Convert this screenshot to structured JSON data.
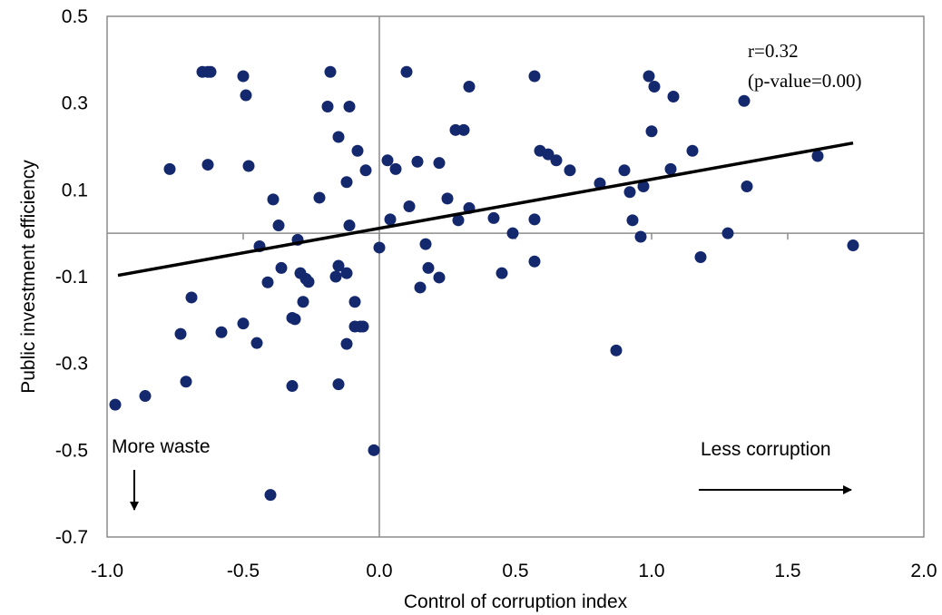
{
  "chart_data": {
    "type": "scatter",
    "xlabel": "Control of corruption index",
    "ylabel": "Public investment efficiency",
    "xlim": [
      -1.0,
      2.0
    ],
    "ylim": [
      -0.7,
      0.5
    ],
    "xticks": [
      "-1.0",
      "-0.5",
      "0.0",
      "0.5",
      "1.0",
      "1.5",
      "2.0"
    ],
    "xtick_values": [
      -1.0,
      -0.5,
      0.0,
      0.5,
      1.0,
      1.5,
      2.0
    ],
    "yticks": [
      "0.5",
      "0.3",
      "0.1",
      "-0.1",
      "-0.3",
      "-0.5",
      "-0.7"
    ],
    "ytick_values": [
      0.5,
      0.3,
      0.1,
      -0.1,
      -0.3,
      -0.5,
      -0.7
    ],
    "grid": false,
    "reference_lines": {
      "x": 0.0,
      "y": 0.0
    },
    "marker_color": "#14286e",
    "trendline": {
      "x": [
        -0.96,
        1.74
      ],
      "y": [
        -0.097,
        0.208
      ],
      "color": "#000000"
    },
    "annotations": {
      "stat_line1": "r=0.32",
      "stat_line2": "(p-value=0.00)",
      "more_waste": "More waste",
      "less_corruption": "Less corruption"
    },
    "points": [
      {
        "x": -0.97,
        "y": -0.395
      },
      {
        "x": -0.86,
        "y": -0.375
      },
      {
        "x": -0.77,
        "y": 0.148
      },
      {
        "x": -0.73,
        "y": -0.232
      },
      {
        "x": -0.71,
        "y": -0.342
      },
      {
        "x": -0.69,
        "y": -0.148
      },
      {
        "x": -0.65,
        "y": 0.372
      },
      {
        "x": -0.63,
        "y": 0.372
      },
      {
        "x": -0.63,
        "y": 0.158
      },
      {
        "x": -0.62,
        "y": 0.372
      },
      {
        "x": -0.58,
        "y": -0.228
      },
      {
        "x": -0.5,
        "y": 0.362
      },
      {
        "x": -0.5,
        "y": -0.208
      },
      {
        "x": -0.49,
        "y": 0.318
      },
      {
        "x": -0.48,
        "y": 0.155
      },
      {
        "x": -0.45,
        "y": -0.253
      },
      {
        "x": -0.44,
        "y": -0.03
      },
      {
        "x": -0.41,
        "y": -0.113
      },
      {
        "x": -0.4,
        "y": -0.603
      },
      {
        "x": -0.39,
        "y": 0.078
      },
      {
        "x": -0.37,
        "y": 0.018
      },
      {
        "x": -0.36,
        "y": -0.08
      },
      {
        "x": -0.32,
        "y": -0.352
      },
      {
        "x": -0.32,
        "y": -0.195
      },
      {
        "x": -0.31,
        "y": -0.198
      },
      {
        "x": -0.3,
        "y": -0.015
      },
      {
        "x": -0.29,
        "y": -0.092
      },
      {
        "x": -0.28,
        "y": -0.158
      },
      {
        "x": -0.27,
        "y": -0.105
      },
      {
        "x": -0.26,
        "y": -0.112
      },
      {
        "x": -0.22,
        "y": 0.082
      },
      {
        "x": -0.19,
        "y": 0.292
      },
      {
        "x": -0.18,
        "y": 0.372
      },
      {
        "x": -0.16,
        "y": -0.1
      },
      {
        "x": -0.15,
        "y": 0.222
      },
      {
        "x": -0.15,
        "y": -0.075
      },
      {
        "x": -0.15,
        "y": -0.348
      },
      {
        "x": -0.12,
        "y": 0.118
      },
      {
        "x": -0.12,
        "y": -0.092
      },
      {
        "x": -0.12,
        "y": -0.255
      },
      {
        "x": -0.11,
        "y": 0.292
      },
      {
        "x": -0.11,
        "y": 0.018
      },
      {
        "x": -0.09,
        "y": -0.158
      },
      {
        "x": -0.09,
        "y": -0.215
      },
      {
        "x": -0.08,
        "y": 0.19
      },
      {
        "x": -0.07,
        "y": -0.215
      },
      {
        "x": -0.06,
        "y": -0.215
      },
      {
        "x": -0.05,
        "y": 0.145
      },
      {
        "x": -0.02,
        "y": -0.5
      },
      {
        "x": 0.0,
        "y": -0.033
      },
      {
        "x": 0.03,
        "y": 0.168
      },
      {
        "x": 0.04,
        "y": 0.032
      },
      {
        "x": 0.06,
        "y": 0.148
      },
      {
        "x": 0.1,
        "y": 0.372
      },
      {
        "x": 0.11,
        "y": 0.062
      },
      {
        "x": 0.14,
        "y": 0.165
      },
      {
        "x": 0.15,
        "y": -0.125
      },
      {
        "x": 0.17,
        "y": -0.025
      },
      {
        "x": 0.18,
        "y": -0.08
      },
      {
        "x": 0.22,
        "y": 0.162
      },
      {
        "x": 0.22,
        "y": -0.102
      },
      {
        "x": 0.25,
        "y": 0.08
      },
      {
        "x": 0.28,
        "y": 0.238
      },
      {
        "x": 0.29,
        "y": 0.03
      },
      {
        "x": 0.31,
        "y": 0.238
      },
      {
        "x": 0.33,
        "y": 0.338
      },
      {
        "x": 0.33,
        "y": 0.058
      },
      {
        "x": 0.42,
        "y": 0.035
      },
      {
        "x": 0.45,
        "y": -0.092
      },
      {
        "x": 0.49,
        "y": 0.0
      },
      {
        "x": 0.57,
        "y": 0.362
      },
      {
        "x": 0.57,
        "y": 0.032
      },
      {
        "x": 0.57,
        "y": -0.065
      },
      {
        "x": 0.59,
        "y": 0.19
      },
      {
        "x": 0.62,
        "y": 0.182
      },
      {
        "x": 0.65,
        "y": 0.168
      },
      {
        "x": 0.7,
        "y": 0.145
      },
      {
        "x": 0.81,
        "y": 0.115
      },
      {
        "x": 0.87,
        "y": -0.27
      },
      {
        "x": 0.9,
        "y": 0.145
      },
      {
        "x": 0.92,
        "y": 0.095
      },
      {
        "x": 0.93,
        "y": 0.03
      },
      {
        "x": 0.96,
        "y": -0.008
      },
      {
        "x": 0.97,
        "y": 0.108
      },
      {
        "x": 0.99,
        "y": 0.362
      },
      {
        "x": 1.0,
        "y": 0.235
      },
      {
        "x": 1.01,
        "y": 0.338
      },
      {
        "x": 1.07,
        "y": 0.148
      },
      {
        "x": 1.08,
        "y": 0.315
      },
      {
        "x": 1.15,
        "y": 0.19
      },
      {
        "x": 1.18,
        "y": -0.055
      },
      {
        "x": 1.28,
        "y": 0.0
      },
      {
        "x": 1.34,
        "y": 0.305
      },
      {
        "x": 1.35,
        "y": 0.108
      },
      {
        "x": 1.61,
        "y": 0.178
      },
      {
        "x": 1.74,
        "y": -0.028
      }
    ]
  }
}
